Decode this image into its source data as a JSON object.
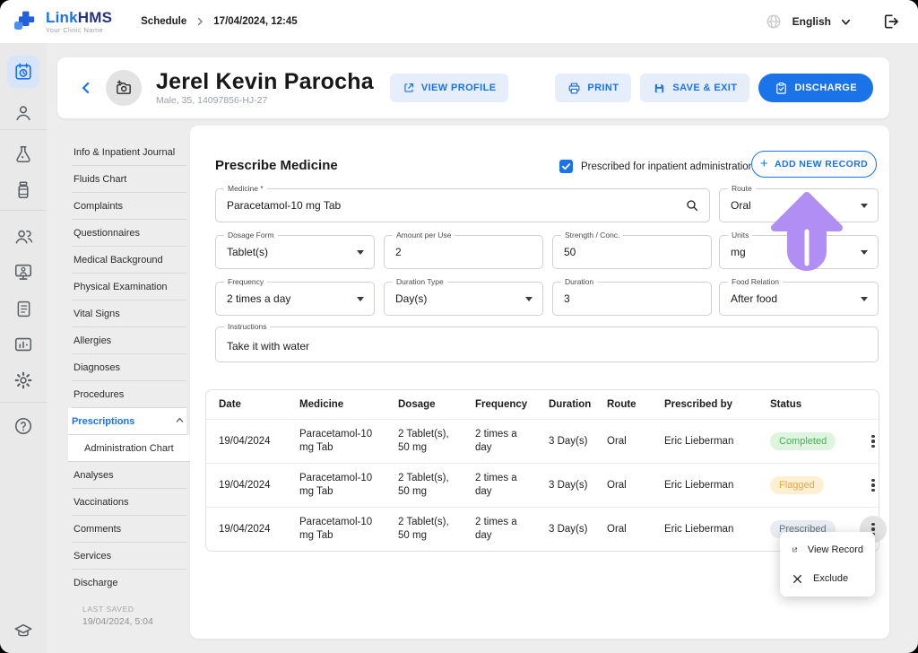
{
  "brand": {
    "logo_primary": "Link",
    "logo_secondary": "HMS",
    "tagline": "Your Clinic Name"
  },
  "topbar": {
    "breadcrumb_section": "Schedule",
    "breadcrumb_current": "17/04/2024, 12:45",
    "language": "English",
    "icons": [
      "globe-icon",
      "chevron-down-icon",
      "logout-icon"
    ]
  },
  "rail": {
    "items": [
      {
        "icon": "schedule-icon",
        "active": true
      },
      {
        "icon": "patients-icon"
      },
      {
        "icon": "lab-icon"
      },
      {
        "icon": "pharmacy-icon"
      },
      {
        "icon": "staff-icon"
      },
      {
        "icon": "telemedicine-icon"
      },
      {
        "icon": "billing-icon"
      },
      {
        "icon": "reports-icon"
      },
      {
        "icon": "settings-icon"
      },
      {
        "icon": "help-icon"
      },
      {
        "icon": "education-icon"
      }
    ]
  },
  "patient": {
    "name": "Jerel Kevin Parocha",
    "meta": "Male, 35, 14097856-HJ-27",
    "view_profile_label": "VIEW PROFILE",
    "print_label": "PRINT",
    "save_exit_label": "SAVE & EXIT",
    "discharge_label": "DISCHARGE"
  },
  "sidebar": {
    "items": [
      {
        "label": "Info & Inpatient Journal"
      },
      {
        "label": "Fluids Chart"
      },
      {
        "label": "Complaints"
      },
      {
        "label": "Questionnaires"
      },
      {
        "label": "Medical Background"
      },
      {
        "label": "Physical Examination"
      },
      {
        "label": "Vital Signs"
      },
      {
        "label": "Allergies"
      },
      {
        "label": "Diagnoses"
      },
      {
        "label": "Procedures"
      },
      {
        "label": "Prescriptions",
        "active": true,
        "expanded": true
      },
      {
        "label": "Administration Chart",
        "sub": true
      },
      {
        "label": "Analyses"
      },
      {
        "label": "Vaccinations"
      },
      {
        "label": "Comments"
      },
      {
        "label": "Services"
      },
      {
        "label": "Discharge"
      }
    ],
    "last_saved_label": "LAST SAVED",
    "last_saved_value": "19/04/2024, 5:04"
  },
  "form": {
    "title": "Prescribe Medicine",
    "inpatient_checkbox_label": "Prescribed for inpatient administration",
    "inpatient_checked": true,
    "add_record_label": "ADD NEW RECORD",
    "fields": {
      "medicine": {
        "label": "Medicine *",
        "value": "Paracetamol-10 mg Tab"
      },
      "route": {
        "label": "Route",
        "value": "Oral"
      },
      "dosage_form": {
        "label": "Dosage Form",
        "value": "Tablet(s)"
      },
      "amount": {
        "label": "Amount per Use",
        "value": "2"
      },
      "strength": {
        "label": "Strength / Conc.",
        "value": "50"
      },
      "units": {
        "label": "Units",
        "value": "mg"
      },
      "frequency": {
        "label": "Frequency",
        "value": "2 times a day"
      },
      "duration_type": {
        "label": "Duration Type",
        "value": "Day(s)"
      },
      "duration": {
        "label": "Duration",
        "value": "3"
      },
      "food_relation": {
        "label": "Food Relation",
        "value": "After food"
      },
      "instructions": {
        "label": "Instructions",
        "value": "Take it with water"
      }
    }
  },
  "table": {
    "headers": [
      "Date",
      "Medicine",
      "Dosage",
      "Frequency",
      "Duration",
      "Route",
      "Prescribed by",
      "Status"
    ],
    "rows": [
      {
        "date": "19/04/2024",
        "medicine": "Paracetamol-10 mg Tab",
        "dosage": "2 Tablet(s), 50 mg",
        "frequency": "2 times a day",
        "duration": "3 Day(s)",
        "route": "Oral",
        "prescribed_by": "Eric Lieberman",
        "status": "Completed",
        "status_type": "completed"
      },
      {
        "date": "19/04/2024",
        "medicine": "Paracetamol-10 mg Tab",
        "dosage": "2 Tablet(s), 50 mg",
        "frequency": "2 times a day",
        "duration": "3 Day(s)",
        "route": "Oral",
        "prescribed_by": "Eric Lieberman",
        "status": "Flagged",
        "status_type": "flagged"
      },
      {
        "date": "19/04/2024",
        "medicine": "Paracetamol-10 mg Tab",
        "dosage": "2 Tablet(s), 50 mg",
        "frequency": "2 times a day",
        "duration": "3 Day(s)",
        "route": "Oral",
        "prescribed_by": "Eric Lieberman",
        "status": "Prescribed",
        "status_type": "prescribed",
        "menu_open": true
      }
    ]
  },
  "context_menu": {
    "items": [
      {
        "label": "View Record",
        "icon": "external-link-icon"
      },
      {
        "label": "Exclude",
        "icon": "close-icon"
      }
    ]
  },
  "annotation_arrow": {
    "direction": "up",
    "color": "#b18ef3"
  },
  "colors": {
    "primary": "#1a73e8",
    "light_button_bg": "#e6eefc",
    "page_bg": "#ededed",
    "status_completed_bg": "#def4de",
    "status_completed_text": "#43b254",
    "status_flagged_bg": "#fdf0d2",
    "status_flagged_text": "#e9a63a",
    "status_prescribed_bg": "#e9edf2",
    "status_prescribed_text": "#677482"
  }
}
